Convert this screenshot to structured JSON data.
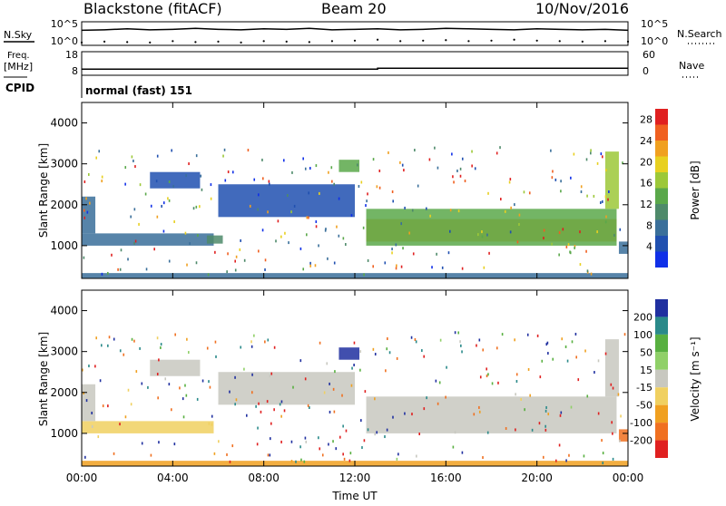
{
  "header": {
    "station": "Blackstone (fitACF)",
    "beam": "Beam 20",
    "date": "10/Nov/2016"
  },
  "labels": {
    "nsky": "N.Sky",
    "nsearch": "N.Search",
    "freq": "Freq.",
    "freq_unit": "[MHz]",
    "nave": "Nave",
    "cpid": "CPID",
    "cpid_value": "normal (fast) 151",
    "nsky_ticks": [
      "10^5",
      "10^0"
    ],
    "nsearch_ticks": [
      "10^5",
      "10^0"
    ],
    "freq_ticks": [
      "18",
      "8"
    ],
    "nave_ticks": [
      "60",
      "0"
    ]
  },
  "chart_data": [
    {
      "type": "line",
      "panel": "noise",
      "series": [
        {
          "name": "N.Sky",
          "style": "line",
          "values": [
            3.2,
            3.3,
            3.5,
            3.3,
            3.4,
            3.6,
            3.4,
            3.3,
            3.5,
            3.4,
            3.6,
            3.3,
            3.4,
            3.5,
            3.3,
            3.4,
            3.6,
            3.5,
            3.4,
            3.3,
            3.5,
            3.4,
            3.3,
            3.4,
            3.2
          ]
        },
        {
          "name": "N.Search",
          "style": "dots",
          "values": [
            0.6,
            0.8,
            0.7,
            0.6,
            0.9,
            0.7,
            0.8,
            0.6,
            0.9,
            0.8,
            0.7,
            0.9,
            1.0,
            1.2,
            0.9,
            1.0,
            1.1,
            0.9,
            1.0,
            1.2,
            1.0,
            0.9,
            0.8,
            0.9,
            0.8
          ]
        }
      ],
      "x": [
        0,
        1,
        2,
        3,
        4,
        5,
        6,
        7,
        8,
        9,
        10,
        11,
        12,
        13,
        14,
        15,
        16,
        17,
        18,
        19,
        20,
        21,
        22,
        23,
        24
      ],
      "ylim": [
        0,
        5
      ]
    },
    {
      "type": "line",
      "panel": "frequency",
      "series": [
        {
          "name": "Freq.",
          "style": "line",
          "x": [
            0,
            13.0,
            13.0,
            24
          ],
          "values": [
            10.6,
            10.6,
            11.0,
            11.0
          ]
        }
      ],
      "ylim": [
        8,
        18
      ]
    },
    {
      "type": "heatmap",
      "panel": "power",
      "title": "",
      "xlabel": "",
      "ylabel": "Slant Range [km]",
      "xlim": [
        0,
        24
      ],
      "ylim": [
        200,
        4500
      ],
      "x_ticks": [
        "00:00",
        "04:00",
        "08:00",
        "12:00",
        "16:00",
        "20:00",
        "00:00"
      ],
      "y_ticks": [
        "1000",
        "2000",
        "3000",
        "4000"
      ],
      "colorbar": {
        "label": "Power [dB]",
        "ticks": [
          "4",
          "8",
          "12",
          "16",
          "20",
          "24",
          "28"
        ],
        "range": [
          0,
          30
        ]
      },
      "regions": [
        {
          "t0": 0.0,
          "t1": 5.8,
          "r0": 1000,
          "r1": 1300,
          "value": 6
        },
        {
          "t0": 0.0,
          "t1": 0.6,
          "r0": 1300,
          "r1": 2200,
          "value": 6
        },
        {
          "t0": 3.0,
          "t1": 5.2,
          "r0": 2400,
          "r1": 2800,
          "value": 5
        },
        {
          "t0": 5.5,
          "t1": 6.2,
          "r0": 1050,
          "r1": 1250,
          "value": 10
        },
        {
          "t0": 6.0,
          "t1": 12.0,
          "r0": 1700,
          "r1": 2500,
          "value": 5
        },
        {
          "t0": 11.3,
          "t1": 12.2,
          "r0": 2800,
          "r1": 3100,
          "value": 13
        },
        {
          "t0": 12.5,
          "t1": 23.5,
          "r0": 1100,
          "r1": 1650,
          "value": 22
        },
        {
          "t0": 12.5,
          "t1": 23.5,
          "r0": 1000,
          "r1": 1900,
          "value": 12
        },
        {
          "t0": 23.0,
          "t1": 23.6,
          "r0": 1900,
          "r1": 3300,
          "value": 15
        },
        {
          "t0": 23.6,
          "t1": 24.0,
          "r0": 800,
          "r1": 1100,
          "value": 8
        },
        {
          "t0": 0.0,
          "t1": 24.0,
          "r0": 200,
          "r1": 330,
          "value": 7
        }
      ]
    },
    {
      "type": "heatmap",
      "panel": "velocity",
      "title": "",
      "xlabel": "Time UT",
      "ylabel": "Slant Range [km]",
      "xlim": [
        0,
        24
      ],
      "ylim": [
        200,
        4500
      ],
      "x_ticks": [
        "00:00",
        "04:00",
        "08:00",
        "12:00",
        "16:00",
        "20:00",
        "00:00"
      ],
      "y_ticks": [
        "1000",
        "2000",
        "3000",
        "4000"
      ],
      "colorbar": {
        "label": "Velocity [m s⁻¹]",
        "ticks": [
          "200",
          "100",
          "50",
          "15",
          "-15",
          "-50",
          "-100",
          "-200"
        ],
        "range": [
          -250,
          250
        ]
      },
      "regions": [
        {
          "t0": 0.0,
          "t1": 5.8,
          "r0": 1000,
          "r1": 1300,
          "value": -20
        },
        {
          "t0": 0.0,
          "t1": 0.6,
          "r0": 1300,
          "r1": 2200,
          "value": 0
        },
        {
          "t0": 3.0,
          "t1": 5.2,
          "r0": 2400,
          "r1": 2800,
          "value": 0
        },
        {
          "t0": 6.0,
          "t1": 12.0,
          "r0": 1700,
          "r1": 2500,
          "value": 0
        },
        {
          "t0": 11.3,
          "t1": 12.2,
          "r0": 2800,
          "r1": 3100,
          "value": 180
        },
        {
          "t0": 12.5,
          "t1": 23.5,
          "r0": 1000,
          "r1": 1900,
          "value": 0
        },
        {
          "t0": 23.0,
          "t1": 23.6,
          "r0": 1900,
          "r1": 3300,
          "value": 0
        },
        {
          "t0": 23.6,
          "t1": 24.0,
          "r0": 800,
          "r1": 1100,
          "value": -80
        },
        {
          "t0": 0.0,
          "t1": 24.0,
          "r0": 200,
          "r1": 330,
          "value": -40
        }
      ]
    }
  ]
}
